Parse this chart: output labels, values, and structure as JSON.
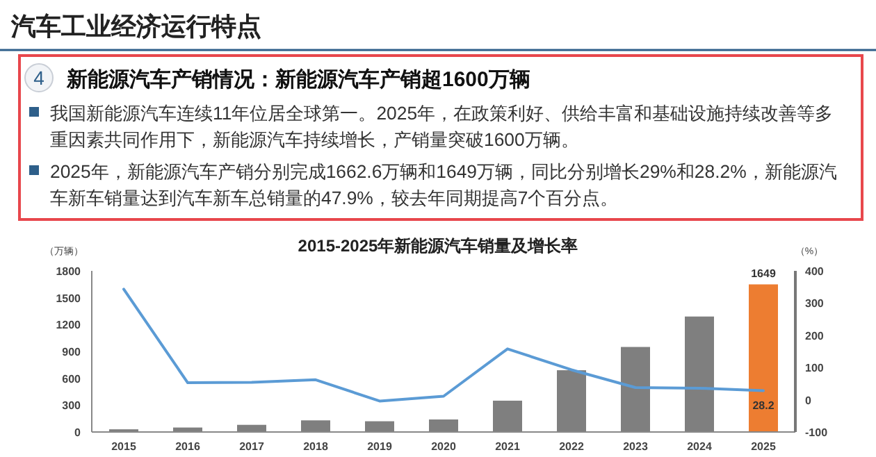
{
  "chart_data": {
    "type": "bar",
    "title": "2015-2025年新能源汽车销量及增长率",
    "ylabel": "（万辆）",
    "y2label": "（%）",
    "annotations": [
      "汽车工业经济运行特点",
      "4",
      "新能源汽车产销情况：新能源汽车产销超1600万辆",
      "我国新能源汽车连续11年位居全球第一。2025年，在政策利好、供给丰富和基础设施持续改善等多重因素共同作用下，新能源汽车持续增长，产销量突破1600万辆。",
      "2025年，新能源汽车产销分别完成1662.6万辆和1649万辆，同比分别增长29%和28.2%，新能源汽车新车销量达到汽车新车总销量的47.9%，较去年同期提高7个百分点。"
    ],
    "categories": [
      "2015",
      "2016",
      "2017",
      "2018",
      "2019",
      "2020",
      "2021",
      "2022",
      "2023",
      "2024",
      "2025"
    ],
    "series": [
      {
        "colors": [
          "#7f7f7f",
          "#7f7f7f",
          "#7f7f7f",
          "#7f7f7f",
          "#7f7f7f",
          "#7f7f7f",
          "#7f7f7f",
          "#7f7f7f",
          "#7f7f7f",
          "#7f7f7f",
          "#ed7d31"
        ],
        "values": [
          30,
          50,
          80,
          130,
          120,
          140,
          350,
          690,
          950,
          1290,
          1649
        ],
        "value_labels": [
          null,
          null,
          null,
          null,
          null,
          null,
          null,
          null,
          null,
          null,
          "1649"
        ]
      },
      {
        "type": "line",
        "axis": "y2",
        "color": "#5b9bd5",
        "values": [
          343,
          53,
          54,
          62,
          -4,
          11,
          158,
          93,
          38,
          36,
          28.2
        ],
        "value_labels": [
          null,
          null,
          null,
          null,
          null,
          null,
          null,
          null,
          null,
          null,
          "28.2"
        ]
      }
    ],
    "ylim": [
      0,
      1800
    ],
    "yticks": [
      0,
      300,
      600,
      900,
      1200,
      1500,
      1800
    ],
    "y2lim": [
      -100,
      400
    ],
    "y2ticks": [
      -100,
      0,
      100,
      200,
      300,
      400
    ],
    "grid": false
  }
}
